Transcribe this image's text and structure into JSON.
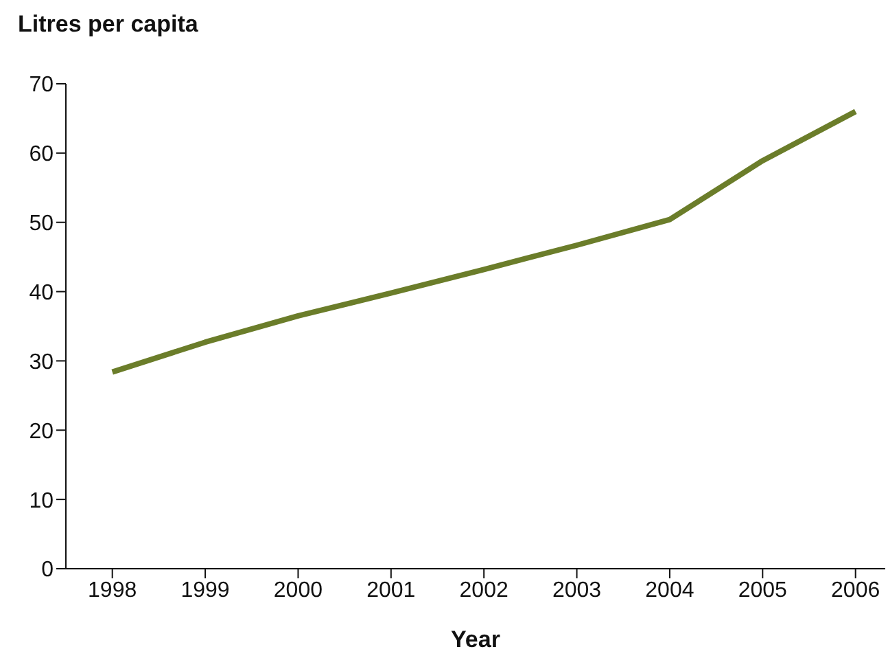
{
  "chart_data": {
    "type": "line",
    "title": "Litres per capita",
    "xlabel": "Year",
    "categories": [
      "1998",
      "1999",
      "2000",
      "2001",
      "2002",
      "2003",
      "2004",
      "2005",
      "2006"
    ],
    "series": [
      {
        "color": "#6b7d2a",
        "values": [
          28.4,
          32.7,
          36.5,
          39.8,
          43.2,
          46.7,
          50.4,
          58.9,
          66.0
        ]
      }
    ],
    "ylim": [
      0,
      70
    ],
    "yticks": [
      0,
      10,
      20,
      30,
      40,
      50,
      60,
      70
    ],
    "grid": false,
    "legend": false,
    "marker": "none",
    "line_style": "solid"
  }
}
